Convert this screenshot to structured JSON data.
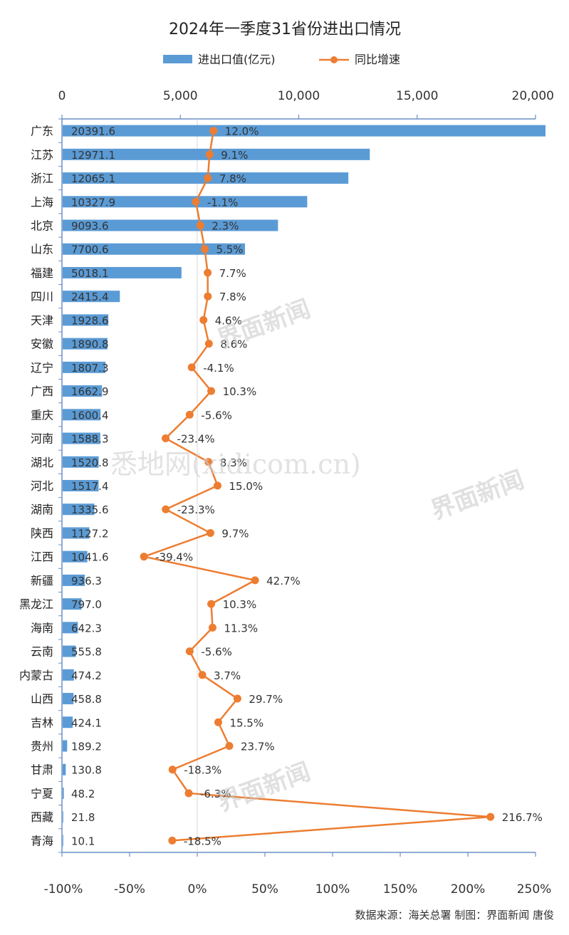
{
  "title": "2024年一季度31省份进出口情况",
  "legend": {
    "bar_label": "进出口值(亿元)",
    "line_label": "同比增速"
  },
  "colors": {
    "bar": "#5b9bd5",
    "line": "#ed7d31",
    "axis": "#6a8fc7"
  },
  "source": "数据来源：海关总署  制图：界面新闻 唐俊",
  "watermarks": [
    "界面新闻",
    "悉地网(xidicom.cn)"
  ],
  "chart_data": {
    "type": "bar",
    "title": "2024年一季度31省份进出口情况",
    "categories": [
      "广东",
      "江苏",
      "浙江",
      "上海",
      "北京",
      "山东",
      "福建",
      "四川",
      "天津",
      "安徽",
      "辽宁",
      "广西",
      "重庆",
      "河南",
      "湖北",
      "河北",
      "湖南",
      "陕西",
      "江西",
      "新疆",
      "黑龙江",
      "海南",
      "云南",
      "内蒙古",
      "山西",
      "吉林",
      "贵州",
      "甘肃",
      "宁夏",
      "西藏",
      "青海"
    ],
    "series": [
      {
        "name": "进出口值(亿元)",
        "type": "bar",
        "axis": "top",
        "values": [
          20391.6,
          12971.1,
          12065.1,
          10327.9,
          9093.6,
          7700.6,
          5018.1,
          2415.4,
          1928.6,
          1890.8,
          1807.3,
          1662.9,
          1600.4,
          1588.3,
          1520.8,
          1517.4,
          1335.6,
          1127.2,
          1041.6,
          936.3,
          797.0,
          642.3,
          555.8,
          474.2,
          458.8,
          424.1,
          189.2,
          130.8,
          48.2,
          21.8,
          10.1
        ],
        "labels": [
          "20391.6",
          "12971.1",
          "12065.1",
          "10327.9",
          "9093.6",
          "7700.6",
          "5018.1",
          "2415.4",
          "1928.6",
          "1890.8",
          "1807.3",
          "1662.9",
          "1600.4",
          "1588.3",
          "1520.8",
          "1517.4",
          "1335.6",
          "1127.2",
          "1041.6",
          "936.3",
          "797.0",
          "642.3",
          "555.8",
          "474.2",
          "458.8",
          "424.1",
          "189.2",
          "130.8",
          "48.2",
          "21.8",
          "10.1"
        ]
      },
      {
        "name": "同比增速",
        "type": "line",
        "axis": "bottom",
        "values": [
          12.0,
          9.1,
          7.8,
          -1.1,
          2.3,
          5.5,
          7.7,
          7.8,
          4.6,
          8.6,
          -4.1,
          10.3,
          -5.6,
          -23.4,
          8.3,
          15.0,
          -23.3,
          9.7,
          -39.4,
          42.7,
          10.3,
          11.3,
          -5.6,
          3.7,
          29.7,
          15.5,
          23.7,
          -18.3,
          -6.3,
          216.7,
          -18.5
        ],
        "labels": [
          "12.0%",
          "9.1%",
          "7.8%",
          "-1.1%",
          "2.3%",
          "5.5%",
          "7.7%",
          "7.8%",
          "4.6%",
          "8.6%",
          "-4.1%",
          "10.3%",
          "-5.6%",
          "-23.4%",
          "8.3%",
          "15.0%",
          "-23.3%",
          "9.7%",
          "-39.4%",
          "42.7%",
          "10.3%",
          "11.3%",
          "-5.6%",
          "3.7%",
          "29.7%",
          "15.5%",
          "23.7%",
          "-18.3%",
          "-6.3%",
          "216.7%",
          "-18.5%"
        ]
      }
    ],
    "top_axis": {
      "range": [
        0,
        20000
      ],
      "ticks": [
        "0",
        "5,000",
        "10,000",
        "15,000",
        "20,000"
      ],
      "tick_values": [
        0,
        5000,
        10000,
        15000,
        20000
      ]
    },
    "bottom_axis": {
      "range": [
        -100,
        250
      ],
      "ticks": [
        "-100%",
        "-50%",
        "0%",
        "50%",
        "100%",
        "150%",
        "200%",
        "250%"
      ],
      "tick_values": [
        -100,
        -50,
        0,
        50,
        100,
        150,
        200,
        250
      ]
    },
    "grid": false,
    "legend_position": "top"
  }
}
